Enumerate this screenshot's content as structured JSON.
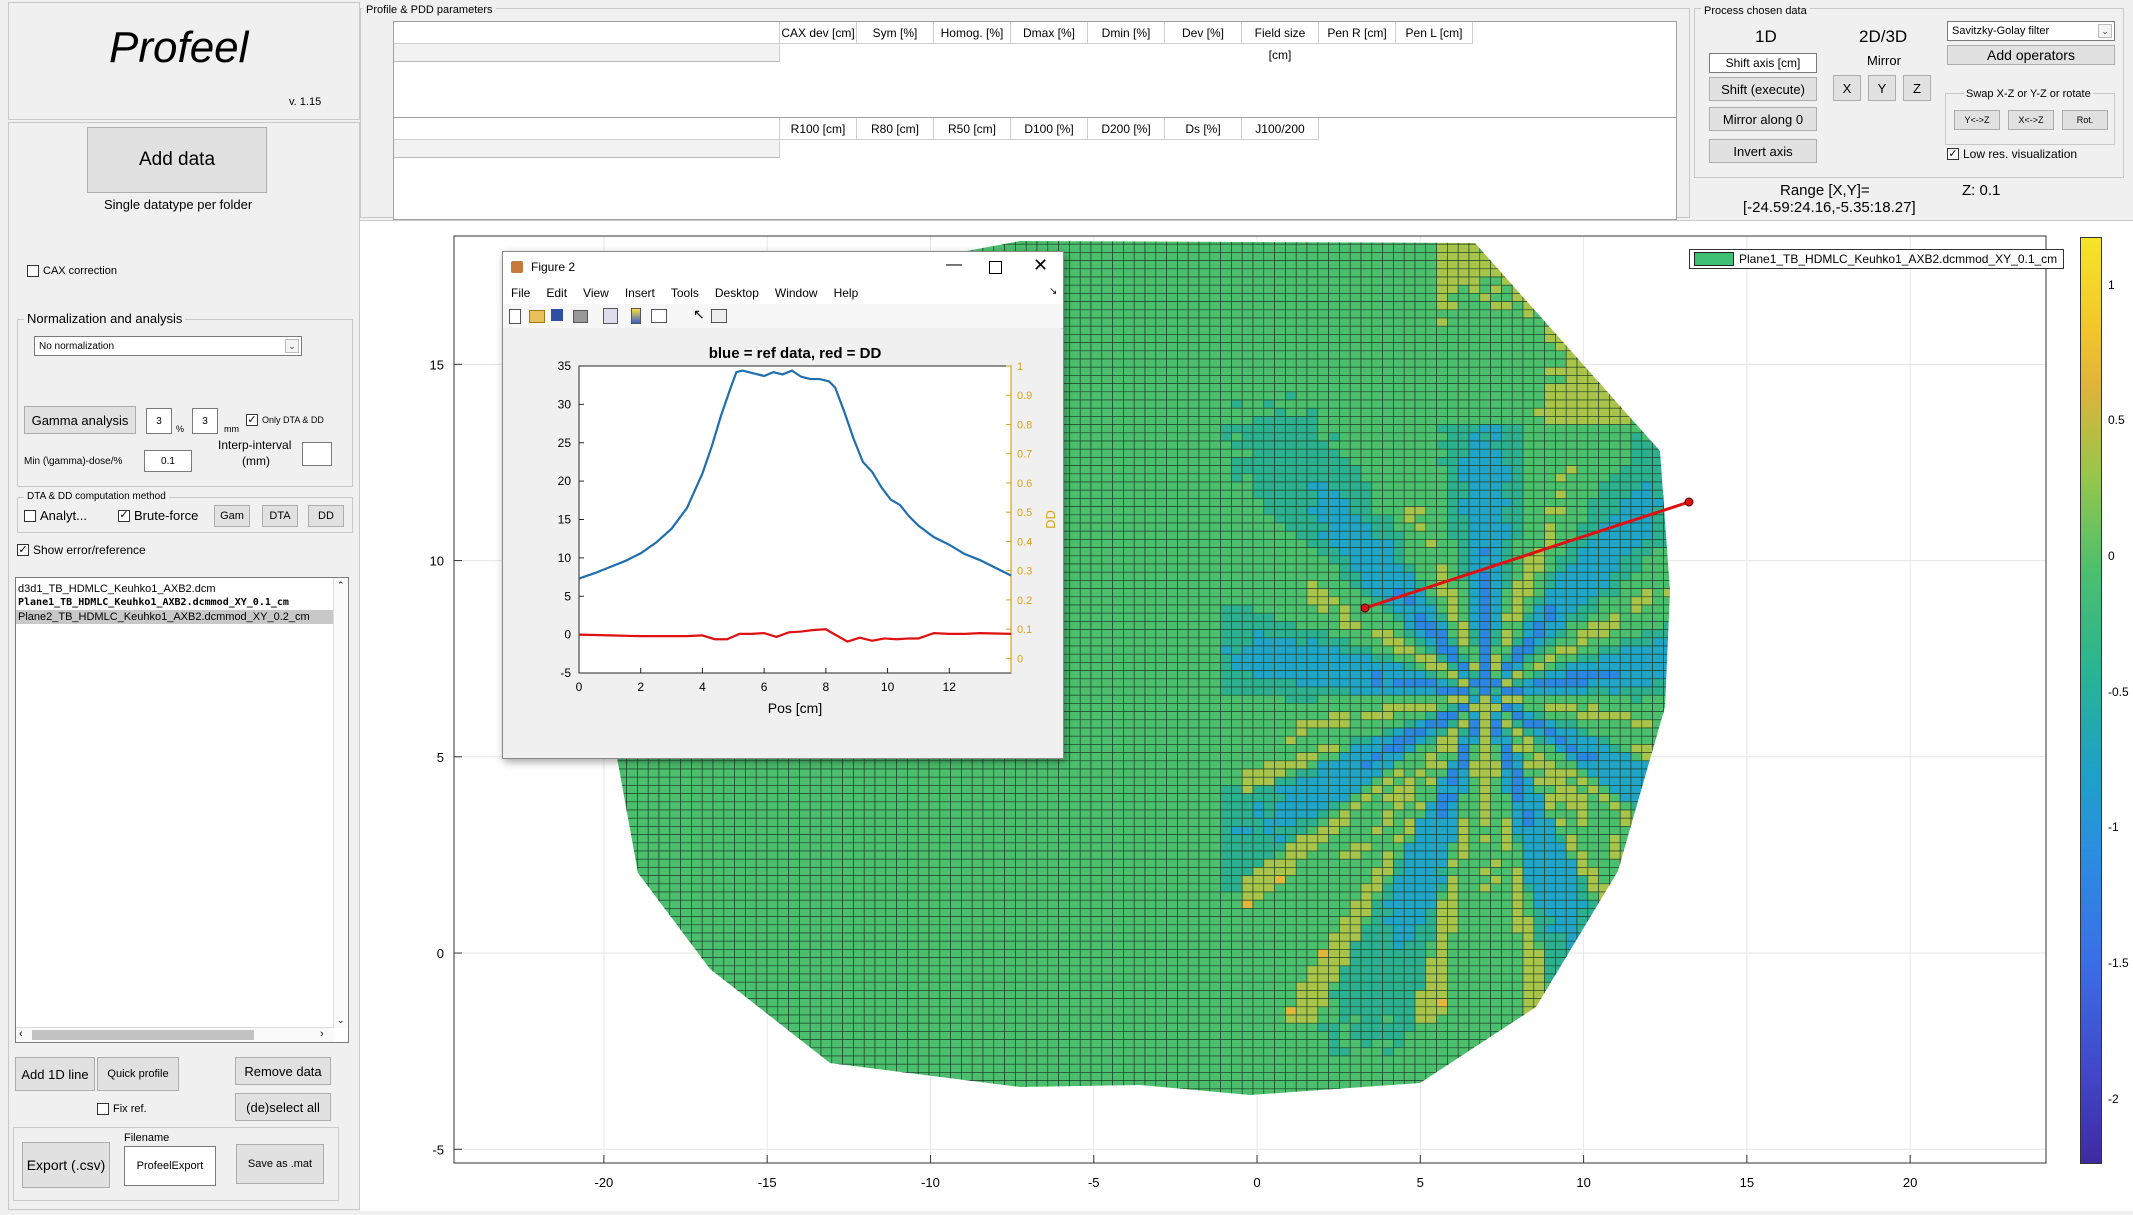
{
  "app": {
    "title": "Profeel",
    "version": "v. 1.15"
  },
  "left": {
    "add_data": "Add data",
    "add_data_sub": "Single datatype per folder",
    "cax_correction": "CAX correction",
    "norm_title": "Normalization and analysis",
    "norm_select": "No normalization",
    "gamma_button": "Gamma analysis",
    "gamma_pct_value": "3",
    "gamma_pct_unit": "%",
    "gamma_mm_value": "3",
    "gamma_mm_unit": "mm",
    "only_dta_dd": "Only DTA & DD",
    "min_gamma_label": "Min (\\gamma)-dose/%",
    "min_gamma_value": "0.1",
    "interp_label_1": "Interp-interval",
    "interp_label_2": "(mm)",
    "interp_value": "",
    "dta_title": "DTA & DD computation method",
    "analyt": "Analyt...",
    "brute": "Brute-force",
    "gam": "Gam",
    "dta": "DTA",
    "dd": "DD",
    "show_error": "Show error/reference",
    "files": [
      "d3d1_TB_HDMLC_Keuhko1_AXB2.dcm",
      "Plane1_TB_HDMLC_Keuhko1_AXB2.dcmmod_XY_0.1_cm",
      "Plane2_TB_HDMLC_Keuhko1_AXB2.dcmmod_XY_0.2_cm"
    ],
    "add_1d_line": "Add 1D line",
    "quick_profile": "Quick profile",
    "remove_data": "Remove data",
    "deselect_all": "(de)select all",
    "fix_ref": "Fix ref.",
    "filename_label": "Filename",
    "export_csv": "Export (.csv)",
    "filename_value": "ProfeelExport",
    "save_mat": "Save as .mat"
  },
  "params": {
    "title": "Profile & PDD parameters",
    "profile_cols": [
      "CAX dev [cm]",
      "Sym [%]",
      "Homog. [%]",
      "Dmax [%]",
      "Dmin [%]",
      "Dev [%]",
      "Field size [cm]",
      "Pen R [cm]",
      "Pen L [cm]"
    ],
    "pdd_cols": [
      "R100 [cm]",
      "R80 [cm]",
      "R50 [cm]",
      "D100 [%]",
      "D200 [%]",
      "Ds [%]",
      "J100/200"
    ]
  },
  "process": {
    "title": "Process chosen data",
    "h1d": "1D",
    "h2d": "2D/3D",
    "shift_axis": "Shift axis [cm]",
    "shift_execute": "Shift (execute)",
    "mirror_along": "Mirror along 0",
    "invert_axis": "Invert axis",
    "mirror": "Mirror",
    "x": "X",
    "y": "Y",
    "z": "Z",
    "filter_select": "Savitzky-Golay filter",
    "add_operators": "Add operators",
    "swap_title": "Swap X-Z or Y-Z or rotate",
    "yz": "Y<->Z",
    "xz": "X<->Z",
    "rot": "Rot.",
    "low_res": "Low res. visualization",
    "range_label": "Range [X,Y]=",
    "range_value": "[-24.59:24.16,-5.35:18.27]",
    "z_label": "Z: 0.1"
  },
  "main_plot": {
    "legend": "Plane1_TB_HDMLC_Keuhko1_AXB2.dcmmod_XY_0.1_cm",
    "xticks": [
      "-20",
      "-15",
      "-10",
      "-5",
      "0",
      "5",
      "10",
      "15",
      "20"
    ],
    "yticks": [
      "15",
      "10",
      "5",
      "0",
      "-5"
    ],
    "cbar_ticks": [
      "1",
      "0.5",
      "0",
      "-0.5",
      "-1",
      "-1.5",
      "-2"
    ],
    "line_color": "#e01010"
  },
  "figure": {
    "title": "Figure 2",
    "menu": [
      "File",
      "Edit",
      "View",
      "Insert",
      "Tools",
      "Desktop",
      "Window",
      "Help"
    ],
    "plot_title": "blue = ref data, red = DD",
    "xlabel": "Pos [cm]",
    "ylabel_right": "DD"
  },
  "chart_data": {
    "type": "line",
    "title": "blue = ref data, red = DD",
    "xlabel": "Pos [cm]",
    "ylabel": "",
    "ylabel_right": "DD",
    "xlim": [
      0,
      14
    ],
    "ylim": [
      -5,
      35
    ],
    "ylim_right": [
      -0.05,
      1
    ],
    "xticks": [
      0,
      2,
      4,
      6,
      8,
      10,
      12
    ],
    "yticks": [
      -5,
      0,
      5,
      10,
      15,
      20,
      25,
      30,
      35
    ],
    "yticks_right": [
      0,
      0.1,
      0.2,
      0.3,
      0.4,
      0.5,
      0.6,
      0.7,
      0.8,
      0.9,
      1
    ],
    "series": [
      {
        "color": "#1f6fb0",
        "x": [
          0,
          0.5,
          1,
          1.5,
          2,
          2.5,
          3,
          3.5,
          4,
          4.3,
          4.6,
          4.9,
          5.1,
          5.3,
          5.6,
          6,
          6.3,
          6.6,
          6.9,
          7.2,
          7.5,
          7.8,
          8.1,
          8.3,
          8.6,
          8.9,
          9.2,
          9.5,
          9.8,
          10.1,
          10.4,
          10.7,
          11,
          11.5,
          12,
          12.5,
          13,
          13.5,
          14
        ],
        "y": [
          7.3,
          8,
          8.8,
          9.6,
          10.6,
          12,
          13.8,
          16.5,
          21,
          24.5,
          28.5,
          32,
          34.2,
          34.4,
          34.1,
          33.7,
          34.2,
          33.9,
          34.4,
          33.6,
          33.3,
          33.3,
          33,
          32.2,
          29,
          25.5,
          22.5,
          21.2,
          19.2,
          17.6,
          16.9,
          15.4,
          14.2,
          12.7,
          11.7,
          10.5,
          9.7,
          8.7,
          7.7
        ]
      },
      {
        "color": "#e01010",
        "x": [
          0,
          1,
          2,
          3,
          3.5,
          4,
          4.4,
          4.8,
          5.2,
          5.6,
          6,
          6.4,
          6.8,
          7.2,
          7.6,
          8,
          8.3,
          8.7,
          9.1,
          9.5,
          9.9,
          10.3,
          10.7,
          11,
          11.5,
          12,
          12.5,
          13,
          14
        ],
        "y": [
          0,
          -0.1,
          -0.2,
          -0.2,
          -0.2,
          -0.1,
          -0.6,
          -0.6,
          0.1,
          0.1,
          0.2,
          -0.3,
          0.3,
          0.4,
          0.6,
          0.7,
          0,
          -0.9,
          -0.4,
          -0.8,
          -0.5,
          -0.6,
          -0.5,
          -0.5,
          0.2,
          0.1,
          0.1,
          0.2,
          0.1
        ]
      }
    ]
  }
}
